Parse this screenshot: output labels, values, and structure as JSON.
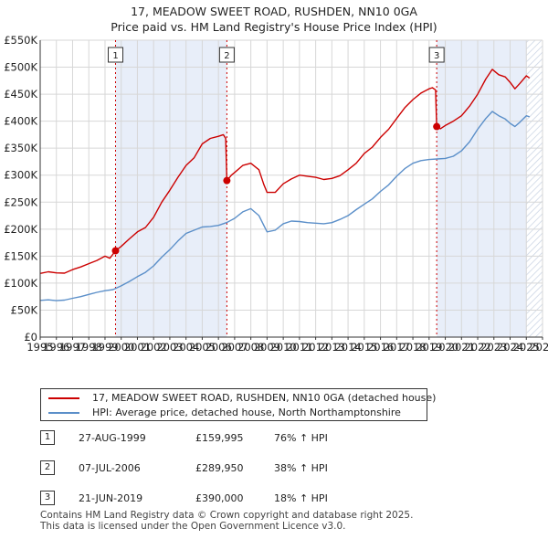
{
  "title": {
    "line1": "17, MEADOW SWEET ROAD, RUSHDEN, NN10 0GA",
    "line2": "Price paid vs. HM Land Registry's House Price Index (HPI)"
  },
  "colors": {
    "property": "#cc0000",
    "hpi": "#5b8fc9",
    "band": "#e8eef9",
    "hatch": "#c9d3e3",
    "grid": "#d7d7d7",
    "vline": "#cc0000"
  },
  "chart_data": {
    "type": "line",
    "title": "17, MEADOW SWEET ROAD, RUSHDEN, NN10 0GA — Price paid vs. HM Land Registry's House Price Index (HPI)",
    "xlabel": "",
    "ylabel": "",
    "xlim": [
      1995,
      2026
    ],
    "ylim": [
      0,
      550000
    ],
    "x_ticks": [
      "1995",
      "1996",
      "1997",
      "1998",
      "1999",
      "2000",
      "2001",
      "2002",
      "2003",
      "2004",
      "2005",
      "2006",
      "2007",
      "2008",
      "2009",
      "2010",
      "2011",
      "2012",
      "2013",
      "2014",
      "2015",
      "2016",
      "2017",
      "2018",
      "2019",
      "2020",
      "2021",
      "2022",
      "2023",
      "2024",
      "2025",
      "2026"
    ],
    "y_ticks": [
      {
        "value": 0,
        "label": "£0"
      },
      {
        "value": 50000,
        "label": "£50K"
      },
      {
        "value": 100000,
        "label": "£100K"
      },
      {
        "value": 150000,
        "label": "£150K"
      },
      {
        "value": 200000,
        "label": "£200K"
      },
      {
        "value": 250000,
        "label": "£250K"
      },
      {
        "value": 300000,
        "label": "£300K"
      },
      {
        "value": 350000,
        "label": "£350K"
      },
      {
        "value": 400000,
        "label": "£400K"
      },
      {
        "value": 450000,
        "label": "£450K"
      },
      {
        "value": 500000,
        "label": "£500K"
      },
      {
        "value": 550000,
        "label": "£550K"
      }
    ],
    "shaded_bands": [
      [
        1999.65,
        2006.52
      ],
      [
        2019.47,
        2025.0
      ]
    ],
    "hatch_from": 2025.0,
    "series": [
      {
        "name": "17, MEADOW SWEET ROAD, RUSHDEN, NN10 0GA (detached house)",
        "color": "#cc0000",
        "points": [
          [
            1995.0,
            118000
          ],
          [
            1995.5,
            121000
          ],
          [
            1996.0,
            119000
          ],
          [
            1996.5,
            118500
          ],
          [
            1997.0,
            125000
          ],
          [
            1997.5,
            130000
          ],
          [
            1998.0,
            136000
          ],
          [
            1998.5,
            142000
          ],
          [
            1999.0,
            150000
          ],
          [
            1999.3,
            146000
          ],
          [
            1999.65,
            159995
          ],
          [
            2000.0,
            168000
          ],
          [
            2000.5,
            182000
          ],
          [
            2001.0,
            195000
          ],
          [
            2001.5,
            203000
          ],
          [
            2002.0,
            222000
          ],
          [
            2002.5,
            250000
          ],
          [
            2003.0,
            272000
          ],
          [
            2003.5,
            296000
          ],
          [
            2004.0,
            318000
          ],
          [
            2004.5,
            332000
          ],
          [
            2005.0,
            358000
          ],
          [
            2005.5,
            368000
          ],
          [
            2006.0,
            372000
          ],
          [
            2006.3,
            375000
          ],
          [
            2006.45,
            368000
          ],
          [
            2006.52,
            289950
          ],
          [
            2006.8,
            300000
          ],
          [
            2007.0,
            305000
          ],
          [
            2007.5,
            318000
          ],
          [
            2008.0,
            322000
          ],
          [
            2008.5,
            310000
          ],
          [
            2008.8,
            283000
          ],
          [
            2009.0,
            268000
          ],
          [
            2009.5,
            268000
          ],
          [
            2010.0,
            284000
          ],
          [
            2010.5,
            293000
          ],
          [
            2011.0,
            300000
          ],
          [
            2011.5,
            298000
          ],
          [
            2012.0,
            296000
          ],
          [
            2012.5,
            292000
          ],
          [
            2013.0,
            294000
          ],
          [
            2013.5,
            299000
          ],
          [
            2014.0,
            310000
          ],
          [
            2014.5,
            322000
          ],
          [
            2015.0,
            340000
          ],
          [
            2015.5,
            352000
          ],
          [
            2016.0,
            370000
          ],
          [
            2016.5,
            385000
          ],
          [
            2017.0,
            405000
          ],
          [
            2017.5,
            425000
          ],
          [
            2018.0,
            440000
          ],
          [
            2018.5,
            452000
          ],
          [
            2019.0,
            460000
          ],
          [
            2019.2,
            462000
          ],
          [
            2019.4,
            458000
          ],
          [
            2019.47,
            390000
          ],
          [
            2019.7,
            386000
          ],
          [
            2020.0,
            392000
          ],
          [
            2020.5,
            400000
          ],
          [
            2021.0,
            410000
          ],
          [
            2021.5,
            428000
          ],
          [
            2022.0,
            450000
          ],
          [
            2022.5,
            478000
          ],
          [
            2022.9,
            496000
          ],
          [
            2023.3,
            486000
          ],
          [
            2023.7,
            482000
          ],
          [
            2024.0,
            472000
          ],
          [
            2024.3,
            460000
          ],
          [
            2024.6,
            470000
          ],
          [
            2025.0,
            484000
          ],
          [
            2025.2,
            480000
          ]
        ]
      },
      {
        "name": "HPI: Average price, detached house, North Northamptonshire",
        "color": "#5b8fc9",
        "points": [
          [
            1995.0,
            68000
          ],
          [
            1995.5,
            69000
          ],
          [
            1996.0,
            67500
          ],
          [
            1996.5,
            68500
          ],
          [
            1997.0,
            72000
          ],
          [
            1997.5,
            75000
          ],
          [
            1998.0,
            79000
          ],
          [
            1998.5,
            83000
          ],
          [
            1999.0,
            86000
          ],
          [
            1999.5,
            88000
          ],
          [
            2000.0,
            95000
          ],
          [
            2000.5,
            103000
          ],
          [
            2001.0,
            112000
          ],
          [
            2001.5,
            120000
          ],
          [
            2002.0,
            132000
          ],
          [
            2002.5,
            148000
          ],
          [
            2003.0,
            162000
          ],
          [
            2003.5,
            178000
          ],
          [
            2004.0,
            192000
          ],
          [
            2004.5,
            198000
          ],
          [
            2005.0,
            204000
          ],
          [
            2005.5,
            205000
          ],
          [
            2006.0,
            207000
          ],
          [
            2006.5,
            212000
          ],
          [
            2007.0,
            220000
          ],
          [
            2007.5,
            232000
          ],
          [
            2008.0,
            238000
          ],
          [
            2008.5,
            225000
          ],
          [
            2009.0,
            195000
          ],
          [
            2009.5,
            198000
          ],
          [
            2010.0,
            210000
          ],
          [
            2010.5,
            215000
          ],
          [
            2011.0,
            214000
          ],
          [
            2011.5,
            212000
          ],
          [
            2012.0,
            211000
          ],
          [
            2012.5,
            210000
          ],
          [
            2013.0,
            212000
          ],
          [
            2013.5,
            218000
          ],
          [
            2014.0,
            225000
          ],
          [
            2014.5,
            236000
          ],
          [
            2015.0,
            246000
          ],
          [
            2015.5,
            256000
          ],
          [
            2016.0,
            270000
          ],
          [
            2016.5,
            282000
          ],
          [
            2017.0,
            298000
          ],
          [
            2017.5,
            312000
          ],
          [
            2018.0,
            322000
          ],
          [
            2018.5,
            327000
          ],
          [
            2019.0,
            329000
          ],
          [
            2019.5,
            330000
          ],
          [
            2020.0,
            331000
          ],
          [
            2020.5,
            335000
          ],
          [
            2021.0,
            345000
          ],
          [
            2021.5,
            362000
          ],
          [
            2022.0,
            385000
          ],
          [
            2022.5,
            405000
          ],
          [
            2022.9,
            418000
          ],
          [
            2023.3,
            410000
          ],
          [
            2023.7,
            404000
          ],
          [
            2024.0,
            396000
          ],
          [
            2024.3,
            390000
          ],
          [
            2024.6,
            398000
          ],
          [
            2025.0,
            410000
          ],
          [
            2025.2,
            408000
          ]
        ]
      }
    ],
    "sale_markers": [
      {
        "label": "1",
        "x": 1999.65,
        "y": 159995
      },
      {
        "label": "2",
        "x": 2006.52,
        "y": 289950
      },
      {
        "label": "3",
        "x": 2019.47,
        "y": 390000
      }
    ]
  },
  "legend": {
    "property_label": "17, MEADOW SWEET ROAD, RUSHDEN, NN10 0GA (detached house)",
    "hpi_label": "HPI: Average price, detached house, North Northamptonshire"
  },
  "sales": [
    {
      "num": "1",
      "date": "27-AUG-1999",
      "price": "£159,995",
      "hpi": "76% ↑ HPI"
    },
    {
      "num": "2",
      "date": "07-JUL-2006",
      "price": "£289,950",
      "hpi": "38% ↑ HPI"
    },
    {
      "num": "3",
      "date": "21-JUN-2019",
      "price": "£390,000",
      "hpi": "18% ↑ HPI"
    }
  ],
  "footer": {
    "line1": "Contains HM Land Registry data © Crown copyright and database right 2025.",
    "line2": "This data is licensed under the Open Government Licence v3.0."
  }
}
